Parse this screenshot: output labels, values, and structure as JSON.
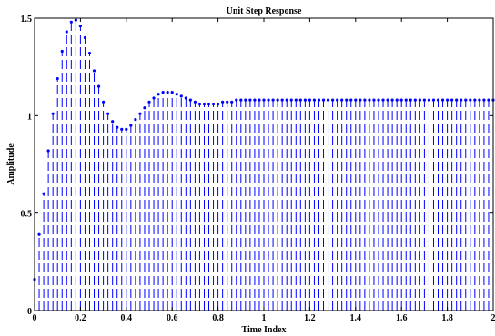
{
  "chart_data": {
    "type": "stem",
    "title": "Unit Step Response",
    "xlabel": "Time Index",
    "ylabel": "Amplitude",
    "xlim": [
      0,
      2
    ],
    "ylim": [
      0,
      1.5
    ],
    "x_ticks": [
      "0",
      "0.2",
      "0.4",
      "0.6",
      "0.8",
      "1",
      "1.2",
      "1.4",
      "1.6",
      "1.8",
      "2"
    ],
    "y_ticks": [
      "0",
      "0.5",
      "1",
      "1.5"
    ],
    "grid": false,
    "legend": "none",
    "stem_color": "#0000ff",
    "marker": "dot",
    "x_start": 0,
    "x_step": 0.02,
    "values": [
      0.16,
      0.39,
      0.6,
      0.82,
      1.01,
      1.19,
      1.33,
      1.43,
      1.48,
      1.49,
      1.46,
      1.4,
      1.32,
      1.23,
      1.15,
      1.07,
      1.01,
      0.97,
      0.94,
      0.93,
      0.93,
      0.95,
      0.98,
      1.01,
      1.04,
      1.07,
      1.09,
      1.11,
      1.12,
      1.12,
      1.12,
      1.11,
      1.1,
      1.09,
      1.08,
      1.07,
      1.06,
      1.06,
      1.06,
      1.06,
      1.06,
      1.07,
      1.07,
      1.07,
      1.08,
      1.08,
      1.08,
      1.08,
      1.08,
      1.08,
      1.08,
      1.08,
      1.08,
      1.08,
      1.08,
      1.08,
      1.08,
      1.08,
      1.08,
      1.08,
      1.08,
      1.08,
      1.08,
      1.08,
      1.08,
      1.08,
      1.08,
      1.08,
      1.08,
      1.08,
      1.08,
      1.08,
      1.08,
      1.08,
      1.08,
      1.08,
      1.08,
      1.08,
      1.08,
      1.08,
      1.08,
      1.08,
      1.08,
      1.08,
      1.08,
      1.08,
      1.08,
      1.08,
      1.08,
      1.08,
      1.08,
      1.08,
      1.08,
      1.08,
      1.08,
      1.08,
      1.08,
      1.08,
      1.08,
      1.08,
      1.08
    ]
  }
}
